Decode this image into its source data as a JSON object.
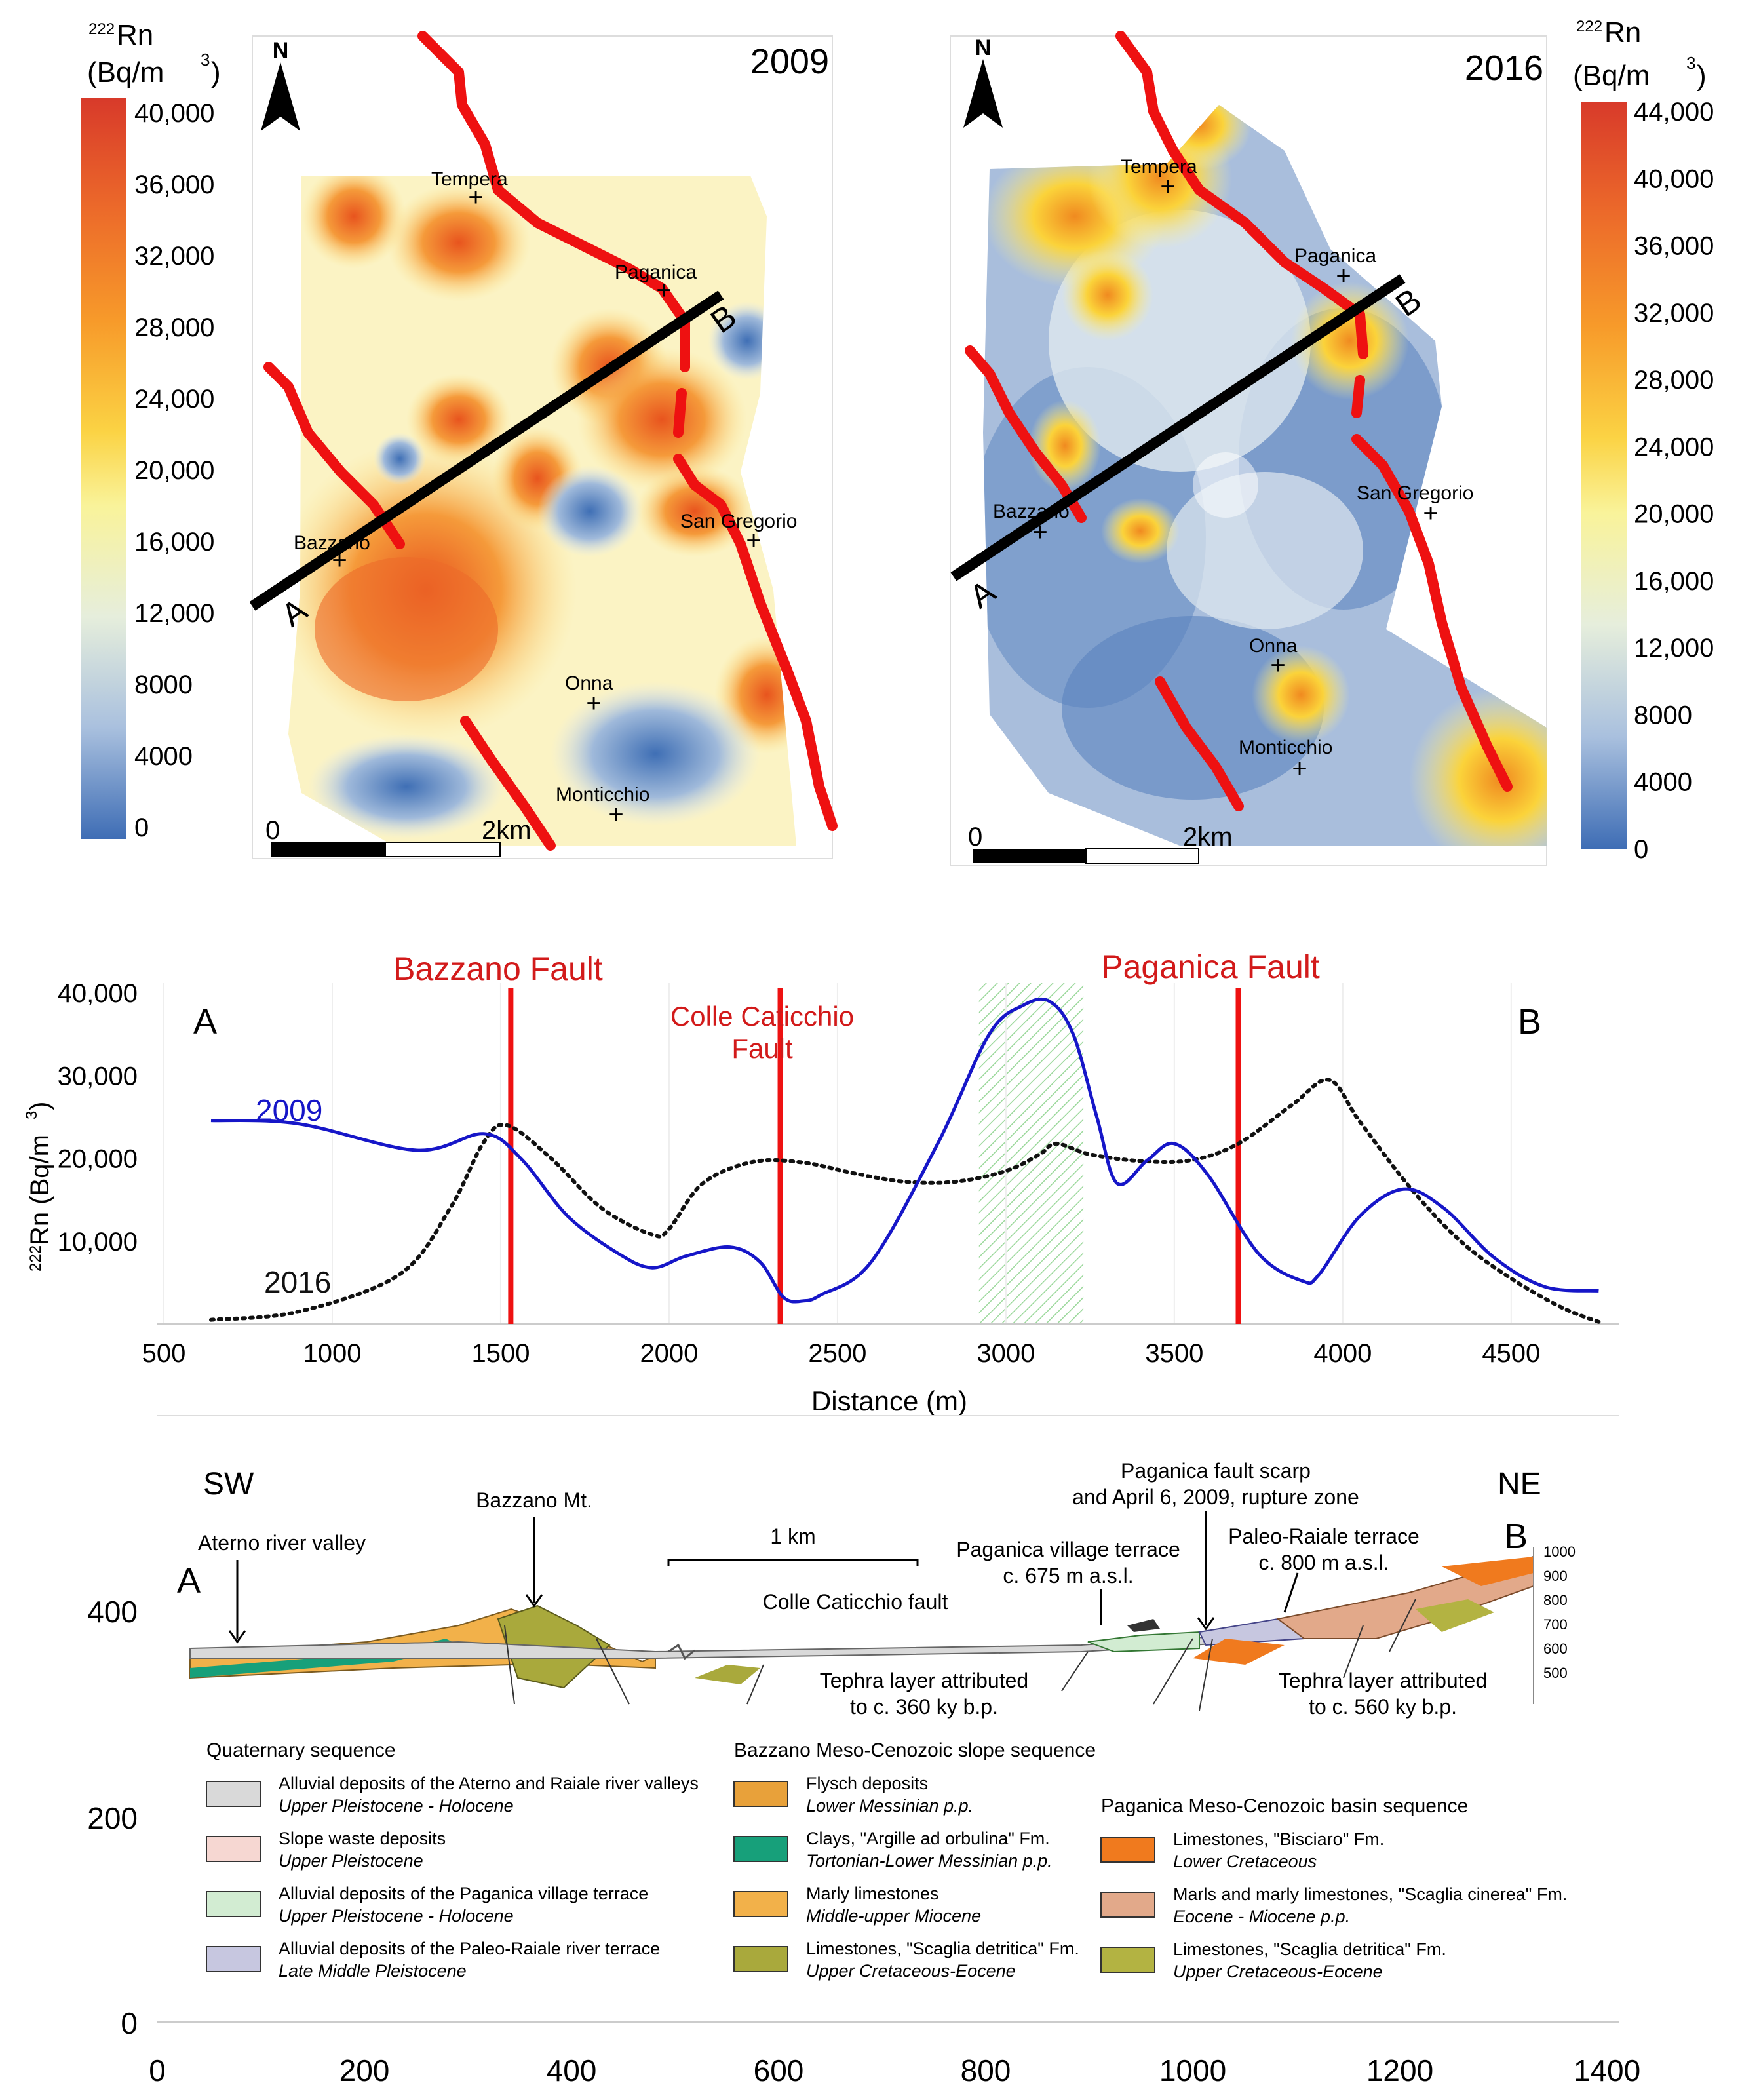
{
  "maps": {
    "left": {
      "year": "2009",
      "north": "N",
      "scale": {
        "start": "0",
        "end": "2km"
      },
      "legend": {
        "title_pre": "222",
        "title_main": "Rn",
        "title_unit": "(Bq/m",
        "ticks": [
          "40,000",
          "36,000",
          "32,000",
          "28,000",
          "24,000",
          "20,000",
          "16,000",
          "12,000",
          "8000",
          "4000",
          "0"
        ]
      },
      "section_labels": {
        "a": "A",
        "b": "B"
      },
      "places": [
        {
          "name": "Tempera"
        },
        {
          "name": "Paganica"
        },
        {
          "name": "San Gregorio"
        },
        {
          "name": "Bazzano"
        },
        {
          "name": "Onna"
        },
        {
          "name": "Monticchio"
        }
      ]
    },
    "right": {
      "year": "2016",
      "north": "N",
      "scale": {
        "start": "0",
        "end": "2km"
      },
      "legend": {
        "title_pre": "222",
        "title_main": "Rn",
        "title_unit": "(Bq/m",
        "ticks": [
          "44,000",
          "40,000",
          "36,000",
          "32,000",
          "28,000",
          "24,000",
          "20,000",
          "16,000",
          "12,000",
          "8000",
          "4000",
          "0"
        ]
      },
      "section_labels": {
        "a": "A",
        "b": "B"
      },
      "places": [
        {
          "name": "Tempera"
        },
        {
          "name": "Paganica"
        },
        {
          "name": "San Gregorio"
        },
        {
          "name": "Bazzano"
        },
        {
          "name": "Onna"
        },
        {
          "name": "Monticchio"
        }
      ]
    }
  },
  "chart_data": {
    "type": "line",
    "xlabel": "Distance (m)",
    "ylabel_pre": "222",
    "ylabel_main": "Rn (Bq/m",
    "xlim": [
      500,
      4800
    ],
    "ylim": [
      0,
      42000
    ],
    "xticks": [
      500,
      1000,
      1500,
      2000,
      2500,
      3000,
      3500,
      4000,
      4500
    ],
    "xtick_labels": [
      "500",
      "1000",
      "1500",
      "2000",
      "2500",
      "3000",
      "3500",
      "4000",
      "4500"
    ],
    "yticks": [
      10000,
      20000,
      30000,
      40000
    ],
    "ytick_labels": [
      "10,000",
      "20,000",
      "30,000",
      "40,000"
    ],
    "end_labels": {
      "left": "A",
      "right": "B"
    },
    "faults": [
      {
        "name": "Bazzano Fault",
        "x": 1530
      },
      {
        "name_line1": "Colle Caticchio",
        "name_line2": "Fault",
        "x": 2330
      },
      {
        "name": "Paganica Fault",
        "x": 3690
      }
    ],
    "shaded_band": {
      "x0": 2920,
      "x1": 3230,
      "color": "#c8ecc8"
    },
    "series": [
      {
        "name": "2009",
        "color": "#1616c8",
        "style": "solid",
        "x": [
          640,
          900,
          1250,
          1450,
          1560,
          1700,
          1850,
          1950,
          2050,
          2180,
          2270,
          2340,
          2400,
          2450,
          2600,
          2800,
          2950,
          3050,
          3130,
          3200,
          3270,
          3330,
          3420,
          3500,
          3600,
          3750,
          3880,
          3930,
          4050,
          4180,
          4300,
          4450,
          4600,
          4760
        ],
        "y": [
          24600,
          24200,
          21000,
          23000,
          20000,
          13000,
          8500,
          6800,
          8200,
          9300,
          7500,
          3200,
          2800,
          3500,
          7500,
          22000,
          35000,
          38500,
          39000,
          35000,
          25000,
          17000,
          19800,
          21800,
          18000,
          8500,
          5200,
          6000,
          13000,
          16300,
          14000,
          8000,
          4500,
          4000
        ]
      },
      {
        "name": "2016",
        "color": "#111111",
        "style": "dotted",
        "x": [
          640,
          900,
          1200,
          1350,
          1450,
          1520,
          1650,
          1800,
          1950,
          2000,
          2100,
          2250,
          2400,
          2550,
          2700,
          2850,
          3000,
          3100,
          3150,
          3250,
          3400,
          3550,
          3690,
          3850,
          3960,
          4050,
          4200,
          4350,
          4500,
          4650,
          4770
        ],
        "y": [
          500,
          1500,
          6000,
          14000,
          22000,
          24000,
          20000,
          14000,
          10800,
          11500,
          17000,
          19600,
          19500,
          18200,
          17200,
          17200,
          18500,
          20500,
          21800,
          20500,
          19700,
          19800,
          21800,
          26500,
          29500,
          24500,
          16500,
          10000,
          5500,
          2000,
          100
        ]
      }
    ]
  },
  "cross_section": {
    "sw": "SW",
    "ne": "NE",
    "a": "A",
    "b": "B",
    "yticks": [
      "400",
      "200",
      "0"
    ],
    "xticks": [
      "0",
      "200",
      "400",
      "600",
      "800",
      "1000",
      "1200",
      "1400"
    ],
    "right_ticks": [
      "1000",
      "900",
      "800",
      "700",
      "600",
      "500"
    ],
    "scale_bar": "1 km",
    "annotations": {
      "aterno": "Aterno river valley",
      "bazzano_mt": "Bazzano Mt.",
      "colle": "Colle Caticchio fault",
      "scarp1": "Paganica fault scarp",
      "scarp2": "and April 6, 2009, rupture zone",
      "village1": "Paganica village terrace",
      "village2": "c. 675 m a.s.l.",
      "raiale1": "Paleo-Raiale terrace",
      "raiale2": "c. 800 m a.s.l.",
      "tephra360_1": "Tephra layer attributed",
      "tephra360_2": "to c. 360 ky b.p.",
      "tephra560_1": "Tephra layer attributed",
      "tephra560_2": "to c. 560 ky b.p."
    },
    "legend": {
      "group1": "Quaternary sequence",
      "group2": "Bazzano Meso-Cenozoic slope sequence",
      "group3": "Paganica Meso-Cenozoic basin sequence",
      "items1": [
        {
          "name": "Alluvial deposits of the Aterno and Raiale river valleys",
          "age": "Upper Pleistocene - Holocene",
          "color": "#d9d9d9"
        },
        {
          "name": "Slope waste deposits",
          "age": "Upper Pleistocene",
          "color": "#f6d7d2"
        },
        {
          "name": "Alluvial deposits of  the Paganica village terrace",
          "age": "Upper Pleistocene - Holocene",
          "color": "#d2ecd2"
        },
        {
          "name": "Alluvial deposits of the Paleo-Raiale river terrace",
          "age": "Late Middle Pleistocene",
          "color": "#c7c7e0"
        }
      ],
      "items2": [
        {
          "name": "Flysch deposits",
          "age": "Lower Messinian  p.p.",
          "color": "#e8a13a"
        },
        {
          "name": "Clays, \"Argille ad orbulina\" Fm.",
          "age": "Tortonian-Lower Messinian  p.p.",
          "color": "#17a07a"
        },
        {
          "name": "Marly limestones",
          "age": "Middle-upper Miocene",
          "color": "#f2b14a"
        },
        {
          "name": "Limestones, \"Scaglia detritica\" Fm.",
          "age": "Upper Cretaceous-Eocene",
          "color": "#a9a93c"
        }
      ],
      "items3": [
        {
          "name": "Limestones, \"Bisciaro\"  Fm.",
          "age": "Lower Cretaceous",
          "color": "#f07a1e"
        },
        {
          "name": "Marls and marly limestones, \"Scaglia cinerea\" Fm.",
          "age": "Eocene - Miocene p.p.",
          "color": "#e2a98a"
        },
        {
          "name": "Limestones, \"Scaglia detritica\" Fm.",
          "age": "Upper Cretaceous-Eocene",
          "color": "#b3b342"
        }
      ]
    }
  },
  "colors": {
    "fault_red": "#ee1111",
    "section_black": "#000000",
    "colormap_low": "#3f6fb5",
    "colormap_high": "#d83a1e"
  }
}
